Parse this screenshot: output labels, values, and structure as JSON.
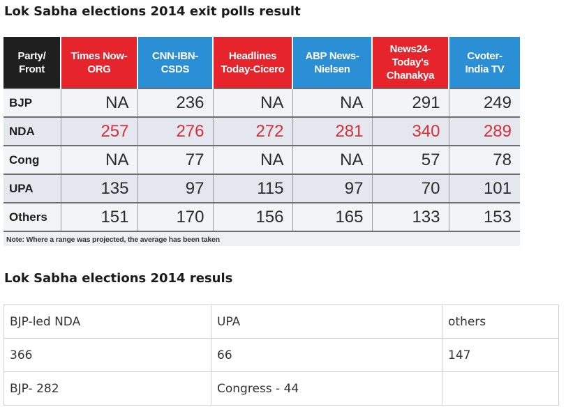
{
  "headings": {
    "exit_polls": "Lok Sabha elections 2014 exit polls result",
    "results": "Lok Sabha elections 2014 resuls"
  },
  "colors": {
    "header_blue": "#2b8fd6",
    "header_red": "#e5242b",
    "header_dark": "#1f1f1f",
    "nda_text": "#d3303c"
  },
  "exit_polls": {
    "columns": [
      {
        "label": "Party/\nFront",
        "color": "#1f1f1f"
      },
      {
        "label": "Times Now-\nORG",
        "color": "#e5242b"
      },
      {
        "label": "CNN-IBN-\nCSDS",
        "color": "#2b8fd6"
      },
      {
        "label": "Headlines\nToday-Cicero",
        "color": "#e5242b"
      },
      {
        "label": "ABP News-\nNielsen",
        "color": "#2b8fd6"
      },
      {
        "label": "News24-\nToday's\nChanakya",
        "color": "#e5242b"
      },
      {
        "label": "Cvoter-\nIndia TV",
        "color": "#2b8fd6"
      }
    ],
    "rows": [
      {
        "party": "BJP",
        "values": [
          "NA",
          "236",
          "NA",
          "NA",
          "291",
          "249"
        ]
      },
      {
        "party": "NDA",
        "values": [
          "257",
          "276",
          "272",
          "281",
          "340",
          "289"
        ]
      },
      {
        "party": "Cong",
        "values": [
          "NA",
          "77",
          "NA",
          "NA",
          "57",
          "78"
        ]
      },
      {
        "party": "UPA",
        "values": [
          "135",
          "97",
          "115",
          "97",
          "70",
          "101"
        ]
      },
      {
        "party": "Others",
        "values": [
          "151",
          "170",
          "156",
          "165",
          "133",
          "153"
        ]
      }
    ],
    "note": "Note: Where a range was projected, the average has been taken"
  },
  "results": {
    "rows": [
      [
        "BJP-led NDA",
        "UPA",
        "others"
      ],
      [
        "366",
        "66",
        "147"
      ],
      [
        "BJP- 282",
        "Congress - 44",
        ""
      ]
    ]
  }
}
